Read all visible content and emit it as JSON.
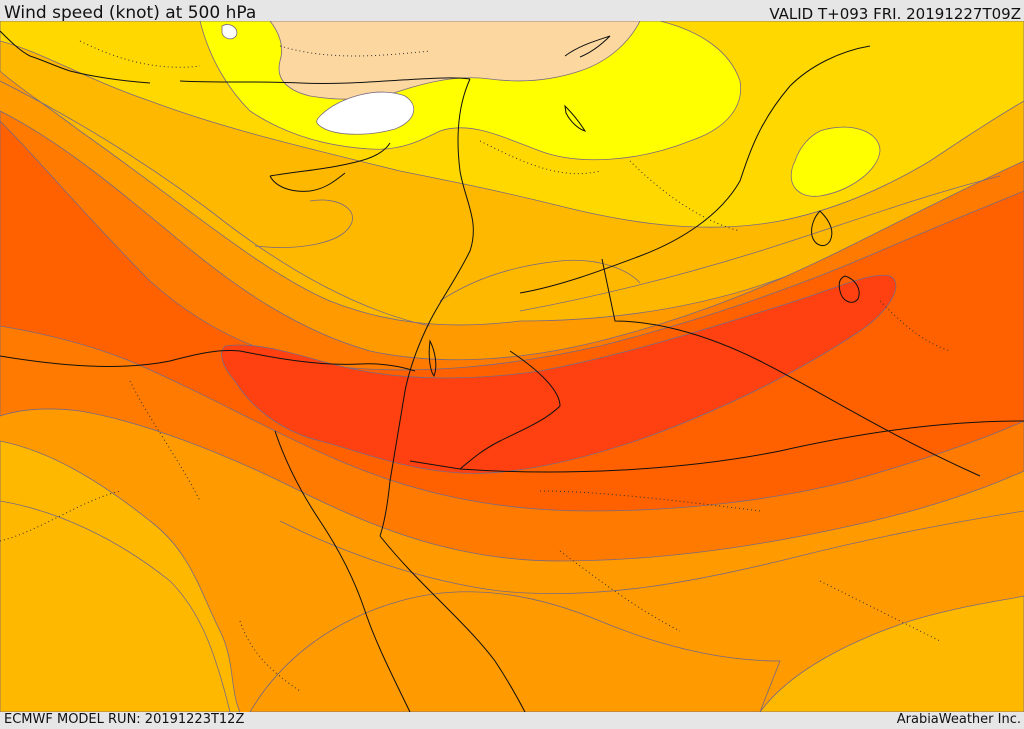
{
  "header": {
    "title": "Wind speed (knot) at 500 hPa",
    "valid": "VALID T+093 FRI. 20191227T09Z"
  },
  "footer": {
    "model_run": "ECMWF MODEL RUN: 20191223T12Z",
    "credit": "ArabiaWeather Inc."
  },
  "map": {
    "variable": "Wind speed",
    "unit": "knot",
    "level": "500 hPa",
    "colors": {
      "white": "#ffffff",
      "peach": "#fcd8a0",
      "yellow": "#ffff00",
      "gold": "#ffd800",
      "amber": "#ffb800",
      "orange": "#ff9a00",
      "dark_orange": "#ff7a00",
      "red_orange": "#ff6000",
      "red": "#ff4010",
      "contour": "#7a6a80",
      "border": "#111111"
    }
  }
}
